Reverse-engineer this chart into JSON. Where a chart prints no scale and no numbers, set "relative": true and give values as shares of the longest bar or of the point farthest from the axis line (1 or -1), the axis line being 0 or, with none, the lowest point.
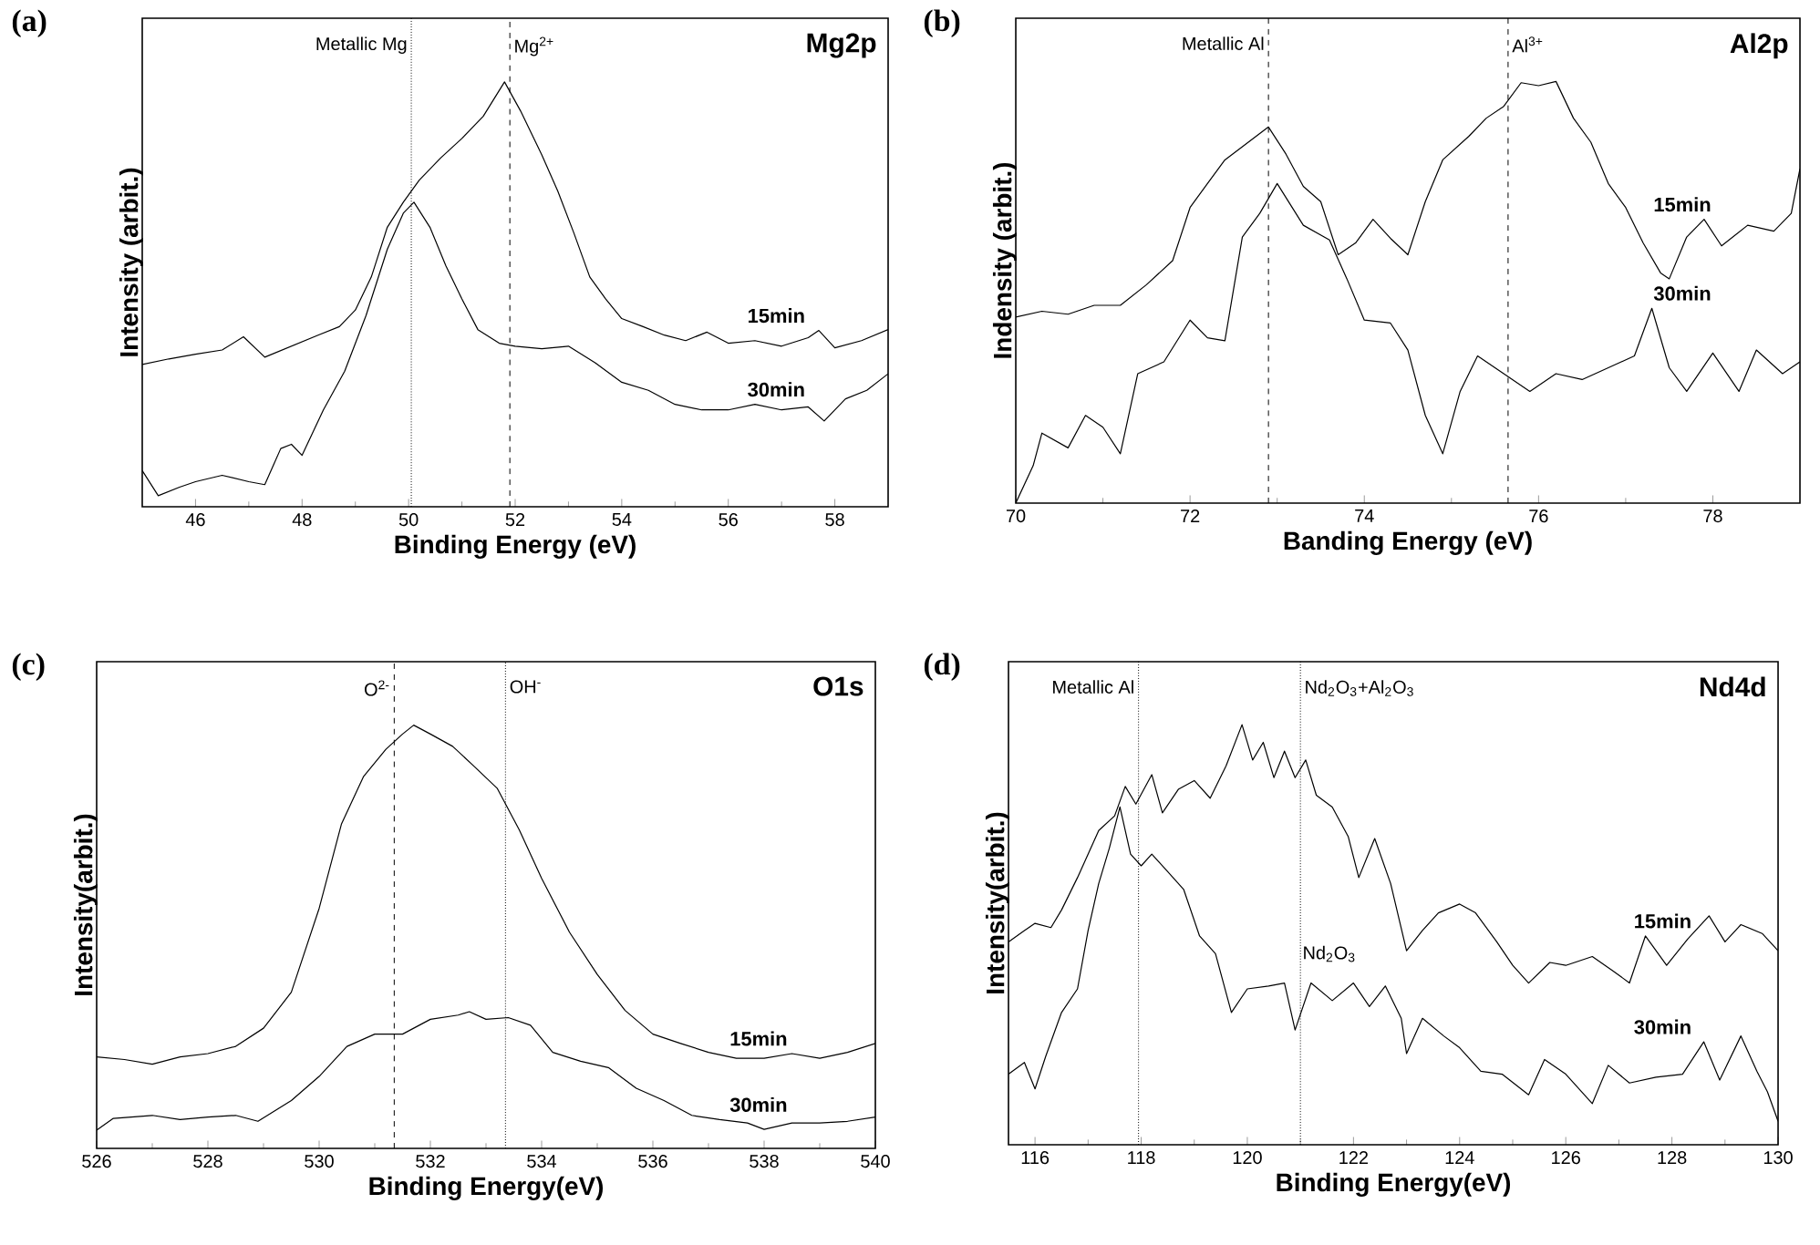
{
  "chart_data": [
    {
      "type": "line",
      "title": "Mg2p",
      "xlabel": "Binding Energy (eV)",
      "ylabel": "Intensity (arbit.)",
      "relative": true,
      "tick_labels": "x",
      "xlim": [
        45,
        59
      ],
      "xticks": [
        46,
        48,
        50,
        52,
        54,
        56,
        58
      ],
      "series": [
        {
          "name": "15min",
          "color": "#000000",
          "x": [
            45.0,
            45.5,
            46.0,
            46.5,
            46.9,
            47.3,
            47.8,
            48.3,
            48.7,
            49.0,
            49.3,
            49.6,
            49.9,
            50.2,
            50.6,
            51.0,
            51.4,
            51.8,
            52.1,
            52.5,
            52.8,
            53.1,
            53.4,
            53.7,
            54.0,
            54.4,
            54.8,
            55.2,
            55.6,
            56.0,
            56.5,
            57.0,
            57.5,
            57.7,
            58.0,
            58.5,
            59.0
          ],
          "values": [
            0.335,
            0.348,
            0.359,
            0.369,
            0.4,
            0.352,
            0.378,
            0.404,
            0.424,
            0.463,
            0.541,
            0.658,
            0.717,
            0.769,
            0.821,
            0.867,
            0.919,
            1,
            0.932,
            0.828,
            0.743,
            0.645,
            0.541,
            0.489,
            0.443,
            0.424,
            0.404,
            0.391,
            0.411,
            0.385,
            0.391,
            0.378,
            0.398,
            0.415,
            0.374,
            0.391,
            0.417
          ]
        },
        {
          "name": "30min",
          "color": "#000000",
          "x": [
            45.0,
            45.3,
            45.7,
            46.0,
            46.5,
            47.0,
            47.3,
            47.6,
            47.8,
            48.0,
            48.4,
            48.8,
            49.2,
            49.6,
            49.9,
            50.1,
            50.4,
            50.7,
            51.0,
            51.3,
            51.7,
            52.0,
            52.5,
            53.0,
            53.5,
            54.0,
            54.5,
            55.0,
            55.5,
            56.0,
            56.5,
            57.0,
            57.5,
            57.8,
            58.2,
            58.6,
            59.0
          ],
          "values": [
            0.085,
            0.026,
            0.046,
            0.059,
            0.074,
            0.059,
            0.052,
            0.137,
            0.147,
            0.121,
            0.228,
            0.319,
            0.45,
            0.606,
            0.691,
            0.717,
            0.658,
            0.567,
            0.489,
            0.417,
            0.385,
            0.378,
            0.372,
            0.378,
            0.339,
            0.293,
            0.274,
            0.241,
            0.228,
            0.228,
            0.241,
            0.228,
            0.235,
            0.202,
            0.254,
            0.274,
            0.313
          ]
        }
      ],
      "ref_lines": [
        {
          "axis": "x",
          "value": 50.05,
          "label": "Metallic Mg",
          "line_style": "dotted"
        },
        {
          "axis": "x",
          "value": 51.9,
          "label": "Mg$^{2+}$",
          "line_style": "dashed"
        }
      ],
      "annotations": [
        "(a)"
      ]
    },
    {
      "type": "line",
      "title": "Al2p",
      "xlabel": "Banding Energy (eV)",
      "ylabel": "Indensity (arbit.)",
      "relative": true,
      "tick_labels": "x",
      "xlim": [
        70,
        79
      ],
      "xticks": [
        70,
        72,
        74,
        76,
        78
      ],
      "series": [
        {
          "name": "15min",
          "color": "#000000",
          "x": [
            70.0,
            70.3,
            70.6,
            70.9,
            71.2,
            71.5,
            71.8,
            72.0,
            72.2,
            72.4,
            72.6,
            72.9,
            73.1,
            73.3,
            73.5,
            73.7,
            73.9,
            74.1,
            74.3,
            74.5,
            74.7,
            74.9,
            75.2,
            75.4,
            75.6,
            75.8,
            76.0,
            76.2,
            76.4,
            76.6,
            76.8,
            77.0,
            77.2,
            77.4,
            77.5,
            77.7,
            77.9,
            78.1,
            78.4,
            78.7,
            78.9,
            79.0
          ],
          "values": [
            0.441,
            0.455,
            0.448,
            0.469,
            0.469,
            0.518,
            0.575,
            0.701,
            0.758,
            0.814,
            0.845,
            0.892,
            0.828,
            0.751,
            0.715,
            0.589,
            0.617,
            0.673,
            0.628,
            0.589,
            0.715,
            0.814,
            0.87,
            0.913,
            0.941,
            0.997,
            0.99,
            1,
            0.913,
            0.856,
            0.758,
            0.701,
            0.617,
            0.546,
            0.532,
            0.631,
            0.673,
            0.61,
            0.659,
            0.645,
            0.687,
            0.793
          ]
        },
        {
          "name": "30min",
          "color": "#000000",
          "x": [
            70.0,
            70.2,
            70.3,
            70.6,
            70.8,
            71.0,
            71.2,
            71.4,
            71.7,
            72.0,
            72.2,
            72.4,
            72.6,
            72.8,
            73.0,
            73.3,
            73.6,
            73.8,
            74.0,
            74.3,
            74.5,
            74.7,
            74.9,
            75.1,
            75.3,
            75.6,
            75.9,
            76.2,
            76.5,
            76.8,
            77.1,
            77.3,
            77.5,
            77.7,
            78.0,
            78.3,
            78.5,
            78.8,
            79.0
          ],
          "values": [
            0,
            0.089,
            0.166,
            0.131,
            0.208,
            0.18,
            0.117,
            0.307,
            0.335,
            0.434,
            0.392,
            0.385,
            0.631,
            0.687,
            0.758,
            0.659,
            0.624,
            0.532,
            0.434,
            0.427,
            0.363,
            0.208,
            0.117,
            0.265,
            0.349,
            0.307,
            0.265,
            0.307,
            0.293,
            0.321,
            0.349,
            0.462,
            0.321,
            0.265,
            0.356,
            0.265,
            0.363,
            0.307,
            0.335
          ]
        }
      ],
      "ref_lines": [
        {
          "axis": "x",
          "value": 72.9,
          "label": "Metallic Al",
          "line_style": "dashed"
        },
        {
          "axis": "x",
          "value": 75.65,
          "label": "Al$^{3+}$",
          "line_style": "dashed"
        }
      ],
      "annotations": [
        "(b)"
      ]
    },
    {
      "type": "line",
      "title": "O1s",
      "xlabel": "Binding Energy(eV)",
      "ylabel": "Intensity(arbit.)",
      "relative": true,
      "tick_labels": "x",
      "xlim": [
        526,
        540
      ],
      "xticks": [
        526,
        528,
        530,
        532,
        534,
        536,
        538,
        540
      ],
      "series": [
        {
          "name": "15min",
          "color": "#000000",
          "x": [
            526.0,
            526.5,
            527.0,
            527.5,
            528.0,
            528.5,
            529.0,
            529.5,
            530.0,
            530.4,
            530.8,
            531.2,
            531.5,
            531.7,
            532.0,
            532.4,
            532.8,
            533.2,
            533.6,
            534.0,
            534.5,
            535.0,
            535.5,
            536.0,
            536.5,
            537.0,
            537.5,
            538.0,
            538.5,
            539.0,
            539.5,
            540.0
          ],
          "values": [
            0.216,
            0.21,
            0.199,
            0.216,
            0.224,
            0.241,
            0.284,
            0.369,
            0.567,
            0.766,
            0.879,
            0.943,
            0.979,
            1,
            0.979,
            0.95,
            0.901,
            0.851,
            0.752,
            0.638,
            0.511,
            0.411,
            0.326,
            0.27,
            0.248,
            0.227,
            0.213,
            0.213,
            0.224,
            0.213,
            0.227,
            0.248
          ]
        },
        {
          "name": "30min",
          "color": "#000000",
          "x": [
            526.0,
            526.3,
            527.0,
            527.5,
            528.0,
            528.5,
            528.9,
            529.5,
            530.0,
            530.5,
            531.0,
            531.5,
            532.0,
            532.5,
            532.7,
            533.0,
            533.4,
            533.8,
            534.2,
            534.7,
            535.2,
            535.7,
            536.2,
            536.7,
            537.2,
            537.7,
            538.0,
            538.5,
            539.0,
            539.5,
            540.0
          ],
          "values": [
            0.043,
            0.071,
            0.078,
            0.068,
            0.074,
            0.078,
            0.064,
            0.113,
            0.17,
            0.241,
            0.27,
            0.27,
            0.305,
            0.315,
            0.323,
            0.305,
            0.309,
            0.291,
            0.227,
            0.206,
            0.191,
            0.142,
            0.113,
            0.078,
            0.068,
            0.06,
            0.045,
            0.06,
            0.06,
            0.064,
            0.074
          ]
        }
      ],
      "ref_lines": [
        {
          "axis": "x",
          "value": 531.35,
          "label": "O$^{2-}$",
          "line_style": "dashed"
        },
        {
          "axis": "x",
          "value": 533.35,
          "label": "OH$^{-}$",
          "line_style": "dotted"
        }
      ],
      "annotations": [
        "(c)"
      ]
    },
    {
      "type": "line",
      "title": "Nd4d",
      "xlabel": "Binding Energy(eV)",
      "ylabel": "Intensity(arbit.)",
      "relative": true,
      "tick_labels": "x",
      "xlim": [
        115.5,
        130
      ],
      "xticks": [
        116,
        118,
        120,
        122,
        124,
        126,
        128,
        130
      ],
      "series": [
        {
          "name": "15min",
          "color": "#000000",
          "x": [
            115.5,
            115.8,
            116.0,
            116.3,
            116.5,
            116.8,
            117.0,
            117.2,
            117.5,
            117.7,
            117.9,
            118.2,
            118.4,
            118.7,
            119.0,
            119.3,
            119.6,
            119.9,
            120.1,
            120.3,
            120.5,
            120.7,
            120.9,
            121.1,
            121.3,
            121.6,
            121.9,
            122.1,
            122.4,
            122.7,
            123.0,
            123.3,
            123.6,
            124.0,
            124.3,
            124.7,
            125.0,
            125.3,
            125.7,
            126.0,
            126.5,
            126.9,
            127.2,
            127.5,
            127.9,
            128.3,
            128.7,
            129.0,
            129.3,
            129.7,
            130.0
          ],
          "values": [
            0.483,
            0.51,
            0.527,
            0.517,
            0.559,
            0.636,
            0.692,
            0.748,
            0.783,
            0.853,
            0.811,
            0.881,
            0.79,
            0.846,
            0.867,
            0.825,
            0.902,
            1,
            0.916,
            0.958,
            0.874,
            0.937,
            0.874,
            0.916,
            0.832,
            0.804,
            0.734,
            0.636,
            0.729,
            0.622,
            0.462,
            0.51,
            0.552,
            0.573,
            0.552,
            0.483,
            0.427,
            0.385,
            0.434,
            0.427,
            0.448,
            0.413,
            0.385,
            0.497,
            0.427,
            0.49,
            0.545,
            0.483,
            0.524,
            0.503,
            0.462
          ]
        },
        {
          "name": "30min",
          "color": "#000000",
          "x": [
            115.5,
            115.8,
            116.0,
            116.2,
            116.5,
            116.8,
            117.0,
            117.2,
            117.4,
            117.6,
            117.8,
            118.0,
            118.2,
            118.5,
            118.8,
            119.1,
            119.4,
            119.7,
            120.0,
            120.4,
            120.7,
            120.9,
            121.2,
            121.6,
            122.0,
            122.3,
            122.6,
            122.9,
            123.0,
            123.3,
            123.7,
            124.0,
            124.4,
            124.8,
            125.3,
            125.6,
            126.0,
            126.5,
            126.8,
            127.2,
            127.7,
            128.2,
            128.6,
            128.9,
            129.3,
            129.6,
            129.8,
            130.0
          ],
          "values": [
            0.168,
            0.196,
            0.133,
            0.21,
            0.315,
            0.371,
            0.51,
            0.622,
            0.706,
            0.804,
            0.692,
            0.664,
            0.692,
            0.65,
            0.608,
            0.497,
            0.455,
            0.315,
            0.371,
            0.378,
            0.385,
            0.273,
            0.385,
            0.343,
            0.385,
            0.329,
            0.378,
            0.301,
            0.217,
            0.301,
            0.259,
            0.231,
            0.175,
            0.168,
            0.119,
            0.203,
            0.168,
            0.098,
            0.189,
            0.147,
            0.161,
            0.168,
            0.245,
            0.154,
            0.259,
            0.175,
            0.126,
            0.056
          ]
        }
      ],
      "ref_lines": [
        {
          "axis": "x",
          "value": 117.95,
          "label": "Metallic Al",
          "line_style": "dotted"
        },
        {
          "axis": "x",
          "value": 121.0,
          "label": "Nd$_{2}$O$_{3}$+Al$_{2}$O$_{3}$",
          "line_style": "dotted"
        }
      ],
      "annotations": [
        "(d)",
        {
          "text": "Nd$_{2}$O$_{3}$",
          "x": 121.0,
          "y": 0.43
        }
      ]
    }
  ]
}
